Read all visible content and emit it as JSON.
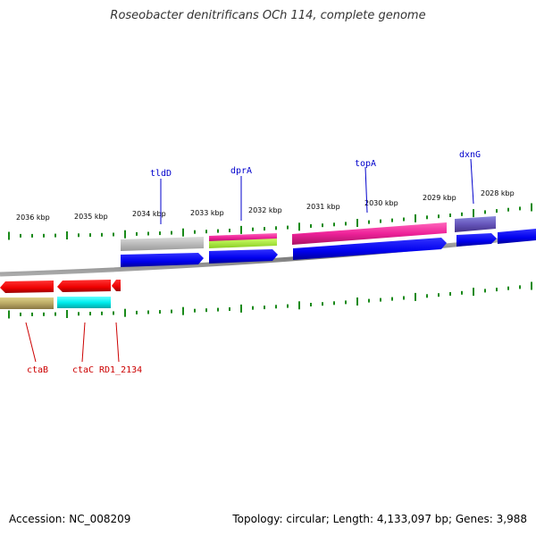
{
  "title": "Roseobacter denitrificans OCh 114, complete genome",
  "footer": {
    "accession": "Accession: NC_008209",
    "summary": "Topology: circular; Length: 4,133,097 bp; Genes: 3,988"
  },
  "colors": {
    "backbone": "#8a8a8a",
    "tick": "#1a8a1a",
    "fwd_label": "#0000cc",
    "rev_label": "#cc0000"
  },
  "scale_labels": [
    "2036 kbp",
    "2035 kbp",
    "2034 kbp",
    "2033 kbp",
    "2032 kbp",
    "2031 kbp",
    "2030 kbp",
    "2029 kbp",
    "2028 kbp"
  ],
  "gene_labels_forward": [
    "tldD",
    "dprA",
    "topA",
    "dxnG"
  ],
  "gene_labels_reverse": [
    "ctaB",
    "ctaC",
    "RD1_2134"
  ]
}
